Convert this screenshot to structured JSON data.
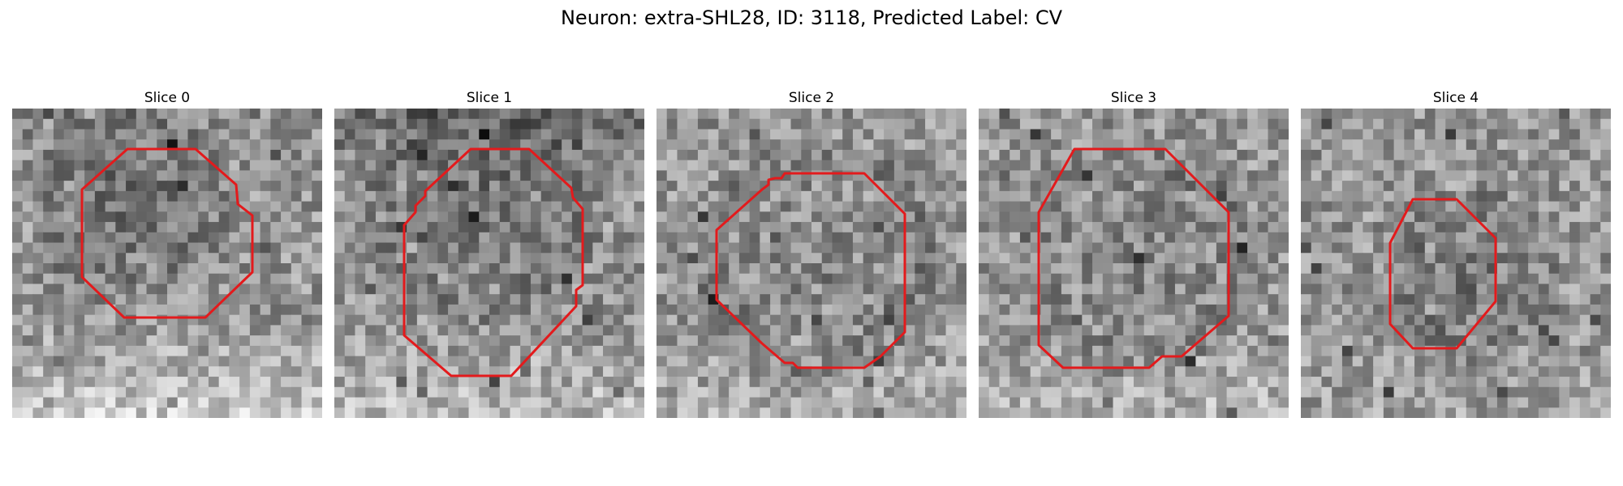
{
  "figure": {
    "title": "Neuron: extra-SHL28, ID: 3118, Predicted Label: CV"
  },
  "panels": [
    {
      "title": "Slice 0"
    },
    {
      "title": "Slice 1"
    },
    {
      "title": "Slice 2"
    },
    {
      "title": "Slice 3"
    },
    {
      "title": "Slice 4"
    }
  ],
  "colors": {
    "outline": "#e31a1c",
    "background": "#ffffff"
  }
}
